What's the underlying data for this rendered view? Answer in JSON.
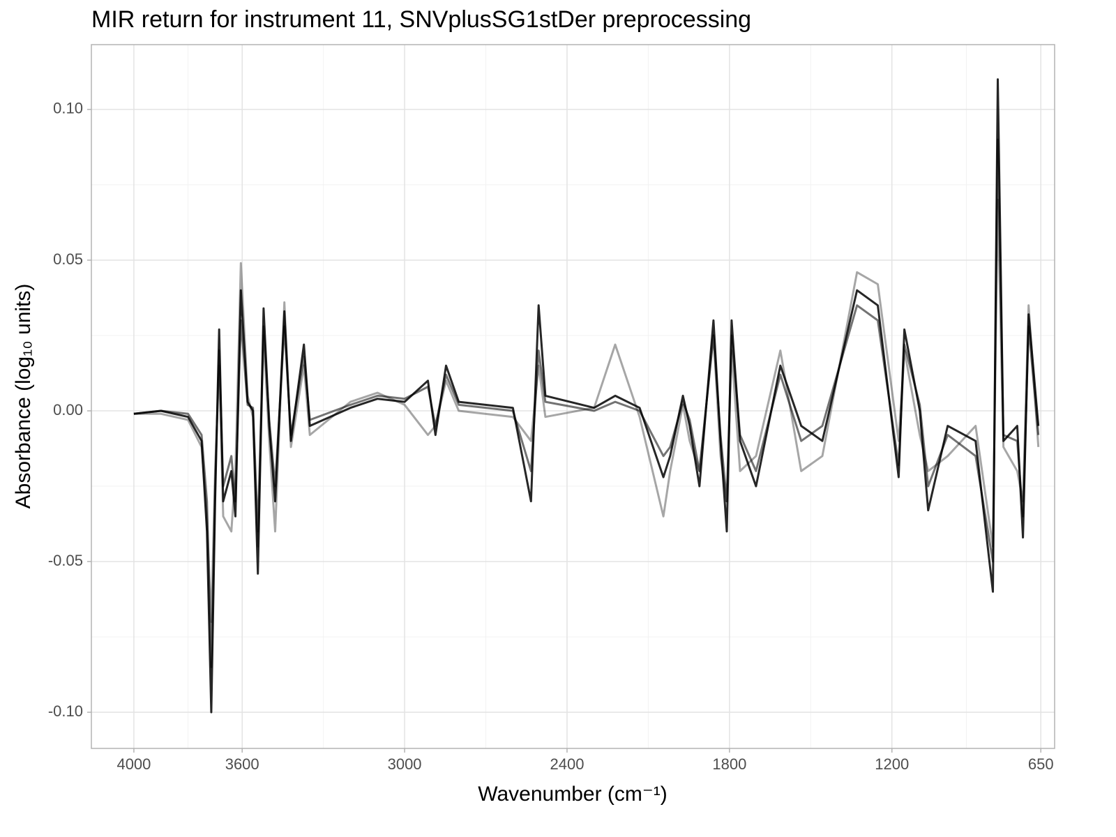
{
  "chart_data": {
    "type": "line",
    "title": "MIR return for instrument 11, SNVplusSG1stDer preprocessing",
    "xlabel": "Wavenumber (cm⁻¹)",
    "ylabel": "Absorbance (log₁₀ units)",
    "xlim": [
      4157,
      599
    ],
    "ylim": [
      -0.112,
      0.1215
    ],
    "xticks": [
      4000,
      3600,
      3000,
      2400,
      1800,
      1200,
      650
    ],
    "xminorticks": [
      3800,
      3300,
      2700,
      2100,
      1500,
      925
    ],
    "yticks": [
      {
        "value": -0.1,
        "label": "-0.10"
      },
      {
        "value": -0.05,
        "label": "-0.05"
      },
      {
        "value": 0,
        "label": "0.00"
      },
      {
        "value": 0.05,
        "label": "0.05"
      },
      {
        "value": 0.1,
        "label": "0.10"
      }
    ],
    "yminorticks": [
      -0.075,
      -0.025,
      0.025,
      0.075
    ],
    "grid": true,
    "x": [
      4000,
      3900,
      3800,
      3750,
      3730,
      3714,
      3700,
      3685,
      3670,
      3640,
      3625,
      3605,
      3580,
      3560,
      3542,
      3521,
      3500,
      3478,
      3444,
      3420,
      3372,
      3350,
      3200,
      3100,
      3000,
      2914,
      2886,
      2847,
      2800,
      2600,
      2533,
      2505,
      2480,
      2300,
      2222,
      2132,
      2044,
      2019,
      1972,
      1947,
      1911,
      1859,
      1833,
      1810,
      1792,
      1761,
      1702,
      1612,
      1535,
      1457,
      1329,
      1252,
      1175,
      1154,
      1097,
      1066,
      994,
      891,
      827,
      809,
      788,
      737,
      716,
      695,
      659
    ],
    "series": [
      {
        "color": "#000000",
        "opacity": 0.35,
        "values": [
          -0.001,
          -0.001,
          -0.003,
          -0.012,
          -0.035,
          -0.07,
          -0.02,
          0.015,
          -0.035,
          -0.04,
          -0.02,
          0.049,
          0.005,
          -0.002,
          -0.045,
          0.025,
          -0.01,
          -0.04,
          0.036,
          -0.012,
          0.015,
          -0.008,
          0.003,
          0.006,
          0.002,
          -0.008,
          -0.005,
          0.01,
          0,
          -0.002,
          -0.01,
          0.015,
          -0.002,
          0.001,
          0.022,
          -0.002,
          -0.035,
          -0.02,
          0.002,
          -0.01,
          -0.02,
          0.025,
          -0.015,
          -0.03,
          0.02,
          -0.02,
          -0.015,
          0.02,
          -0.02,
          -0.015,
          0.046,
          0.042,
          -0.01,
          0.02,
          -0.008,
          -0.02,
          -0.015,
          -0.005,
          -0.045,
          0.07,
          -0.012,
          -0.02,
          -0.03,
          0.035,
          -0.012
        ]
      },
      {
        "color": "#000000",
        "opacity": 0.55,
        "values": [
          -0.001,
          0,
          -0.001,
          -0.008,
          -0.03,
          -0.085,
          -0.025,
          0.02,
          -0.025,
          -0.015,
          -0.03,
          0.03,
          0.002,
          0.001,
          -0.04,
          0.028,
          -0.003,
          -0.025,
          0.028,
          -0.008,
          0.018,
          -0.003,
          0.002,
          0.005,
          0.004,
          0.008,
          -0.005,
          0.012,
          0.002,
          0,
          -0.02,
          0.02,
          0.003,
          0,
          0.003,
          0,
          -0.015,
          -0.012,
          0.003,
          -0.003,
          -0.02,
          0.025,
          -0.008,
          -0.03,
          0.025,
          -0.008,
          -0.02,
          0.012,
          -0.01,
          -0.005,
          0.035,
          0.03,
          -0.018,
          0.022,
          0.002,
          -0.025,
          -0.008,
          -0.015,
          -0.05,
          0.09,
          -0.008,
          -0.01,
          -0.035,
          0.028,
          -0.008
        ]
      },
      {
        "color": "#000000",
        "opacity": 0.85,
        "values": [
          -0.001,
          0,
          -0.002,
          -0.01,
          -0.04,
          -0.1,
          -0.03,
          0.027,
          -0.03,
          -0.02,
          -0.035,
          0.04,
          0.003,
          0,
          -0.054,
          0.034,
          -0.005,
          -0.03,
          0.033,
          -0.01,
          0.022,
          -0.005,
          0.001,
          0.004,
          0.003,
          0.01,
          -0.008,
          0.015,
          0.003,
          0.001,
          -0.03,
          0.035,
          0.005,
          0.001,
          0.005,
          0.001,
          -0.022,
          -0.015,
          0.005,
          -0.005,
          -0.025,
          0.03,
          -0.01,
          -0.04,
          0.03,
          -0.01,
          -0.025,
          0.015,
          -0.005,
          -0.01,
          0.04,
          0.035,
          -0.022,
          0.027,
          0,
          -0.033,
          -0.005,
          -0.01,
          -0.06,
          0.11,
          -0.01,
          -0.005,
          -0.042,
          0.032,
          -0.005
        ]
      }
    ]
  }
}
